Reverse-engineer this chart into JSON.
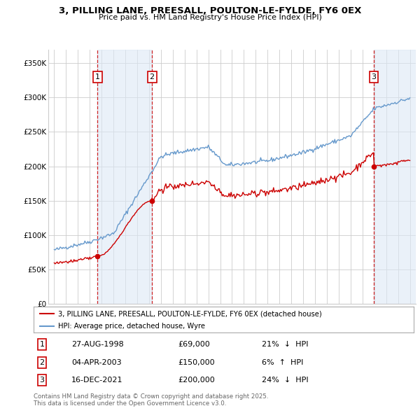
{
  "title": "3, PILLING LANE, PREESALL, POULTON-LE-FYLDE, FY6 0EX",
  "subtitle": "Price paid vs. HM Land Registry's House Price Index (HPI)",
  "ylabel_ticks": [
    0,
    50000,
    100000,
    150000,
    200000,
    250000,
    300000,
    350000
  ],
  "ylabel_labels": [
    "£0",
    "£50K",
    "£100K",
    "£150K",
    "£200K",
    "£250K",
    "£300K",
    "£350K"
  ],
  "xlim": [
    1994.5,
    2025.5
  ],
  "ylim": [
    0,
    370000
  ],
  "transactions": [
    {
      "num": 1,
      "date": "27-AUG-1998",
      "year": 1998.65,
      "price": 69000,
      "pct": "21%",
      "dir": "↓",
      "rel": "HPI"
    },
    {
      "num": 2,
      "date": "04-APR-2003",
      "year": 2003.25,
      "price": 150000,
      "pct": "6%",
      "dir": "↑",
      "rel": "HPI"
    },
    {
      "num": 3,
      "date": "16-DEC-2021",
      "year": 2021.96,
      "price": 200000,
      "pct": "24%",
      "dir": "↓",
      "rel": "HPI"
    }
  ],
  "legend_red": "3, PILLING LANE, PREESALL, POULTON-LE-FYLDE, FY6 0EX (detached house)",
  "legend_blue": "HPI: Average price, detached house, Wyre",
  "footer": "Contains HM Land Registry data © Crown copyright and database right 2025.\nThis data is licensed under the Open Government Licence v3.0.",
  "red_color": "#cc0000",
  "blue_color": "#6699cc",
  "shade_color": "#dce8f5",
  "vline_color": "#cc0000",
  "background_color": "#ffffff",
  "grid_color": "#cccccc"
}
